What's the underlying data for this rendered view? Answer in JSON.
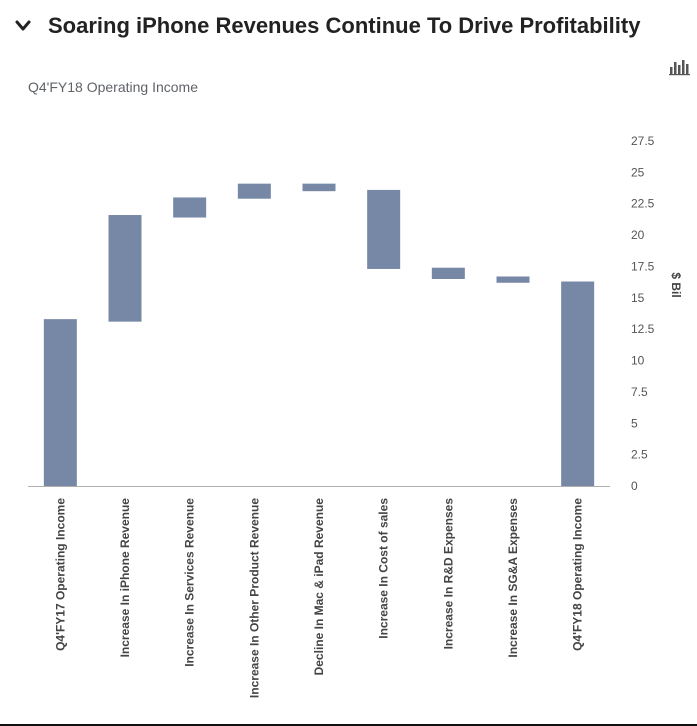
{
  "header": {
    "title": "Soaring iPhone Revenues Continue To Drive Profitability",
    "collapse_icon": "chevron-down-icon",
    "chart_icon": "bar-chart-icon"
  },
  "chart_data": {
    "type": "bar",
    "subtitle": "Q4'FY18 Operating Income",
    "ylabel": "$ Bil",
    "ylim": [
      0,
      27.5
    ],
    "yticks": [
      "0",
      "2.5",
      "5",
      "7.5",
      "10",
      "12.5",
      "15",
      "17.5",
      "20",
      "22.5",
      "25",
      "27.5"
    ],
    "grid": false,
    "bar_color": "#7788a6",
    "categories": [
      "Q4'FY17 Operating Income",
      "Increase In iPhone Revenue",
      "Increase In Services Revenue",
      "Increase In Other Product Revenue",
      "Decline In Mac & iPad Revenue",
      "Increase In Cost of sales",
      "Increase In R&D Expenses",
      "Increase In SG&A Expenses",
      "Q4'FY18 Operating Income"
    ],
    "bars": [
      {
        "low": 0,
        "high": 13.3
      },
      {
        "low": 13.1,
        "high": 21.6
      },
      {
        "low": 21.4,
        "high": 23.0
      },
      {
        "low": 22.9,
        "high": 24.1
      },
      {
        "low": 23.5,
        "high": 24.1
      },
      {
        "low": 17.3,
        "high": 23.6
      },
      {
        "low": 16.5,
        "high": 17.4
      },
      {
        "low": 16.2,
        "high": 16.7
      },
      {
        "low": 0,
        "high": 16.3
      }
    ]
  }
}
